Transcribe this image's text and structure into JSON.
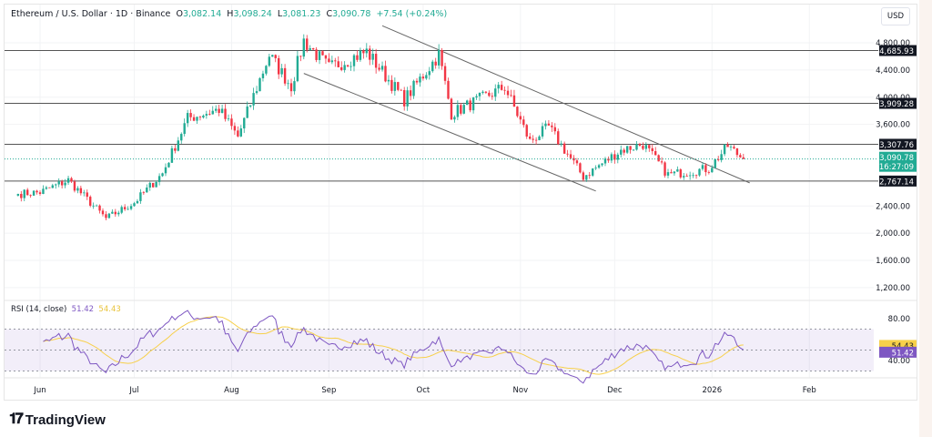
{
  "header": {
    "symbol": "Ethereum / U.S. Dollar · 1D · Binance",
    "open_label": "O",
    "open": "3,082.14",
    "high_label": "H",
    "high": "3,098.24",
    "low_label": "L",
    "low": "3,081.23",
    "close_label": "C",
    "close": "3,090.78",
    "change": "+7.54 (+0.24%)"
  },
  "currency": "USD",
  "colors": {
    "up": "#22ab94",
    "down": "#f23645",
    "rsi": "#7e57c2",
    "rsi_ma": "#f7d04a",
    "level": "#131722"
  },
  "price_axis": {
    "ticks": [
      4800,
      4400,
      4000,
      3600,
      2400,
      2000,
      1600,
      1200
    ],
    "tick_labels": [
      "4,800.00",
      "4,400.00",
      "4,000.00",
      "3,600.00",
      "2,400.00",
      "2,000.00",
      "1,600.00",
      "1,200.00"
    ]
  },
  "levels": [
    {
      "value": 4685.93,
      "label": "4,685.93"
    },
    {
      "value": 3909.28,
      "label": "3,909.28"
    },
    {
      "value": 3307.76,
      "label": "3,307.76"
    },
    {
      "value": 2767.14,
      "label": "2,767.14"
    }
  ],
  "current_price": {
    "value": 3090.78,
    "label": "3,090.78",
    "countdown": "16:27:09"
  },
  "time_axis": [
    {
      "date": "2025-06-01",
      "label": "Jun"
    },
    {
      "date": "2025-07-01",
      "label": "Jul"
    },
    {
      "date": "2025-08-01",
      "label": "Aug"
    },
    {
      "date": "2025-09-01",
      "label": "Sep"
    },
    {
      "date": "2025-10-01",
      "label": "Oct"
    },
    {
      "date": "2025-11-01",
      "label": "Nov"
    },
    {
      "date": "2025-12-01",
      "label": "Dec"
    },
    {
      "date": "2026-01-01",
      "label": "2026"
    },
    {
      "date": "2026-02-01",
      "label": "Feb"
    }
  ],
  "price_path": [
    [
      "2025-05-25",
      2578
    ],
    [
      "2025-06-01",
      2600
    ],
    [
      "2025-06-10",
      2780
    ],
    [
      "2025-06-22",
      2216
    ],
    [
      "2025-07-01",
      2450
    ],
    [
      "2025-07-10",
      2880
    ],
    [
      "2025-07-18",
      3690
    ],
    [
      "2025-07-28",
      3820
    ],
    [
      "2025-08-03",
      3420
    ],
    [
      "2025-08-13",
      4620
    ],
    [
      "2025-08-20",
      4160
    ],
    [
      "2025-08-24",
      4830
    ],
    [
      "2025-09-01",
      4430
    ],
    [
      "2025-09-13",
      4670
    ],
    [
      "2025-09-25",
      3960
    ],
    [
      "2025-10-06",
      4630
    ],
    [
      "2025-10-10",
      3760
    ],
    [
      "2025-10-27",
      4150
    ],
    [
      "2025-11-04",
      3350
    ],
    [
      "2025-11-10",
      3560
    ],
    [
      "2025-11-21",
      2830
    ],
    [
      "2025-12-03",
      3220
    ],
    [
      "2025-12-10",
      3310
    ],
    [
      "2025-12-18",
      2860
    ],
    [
      "2025-12-31",
      2950
    ],
    [
      "2026-01-06",
      3280
    ],
    [
      "2026-01-11",
      3090.78
    ]
  ],
  "channel": {
    "upper": [
      [
        "2025-09-18",
        5050
      ],
      [
        "2026-01-13",
        2740
      ]
    ],
    "lower": [
      [
        "2025-08-24",
        4350
      ],
      [
        "2025-11-25",
        2620
      ]
    ]
  },
  "rsi": {
    "label": "RSI (14, close)",
    "value": "51.42",
    "ma_value": "54.43",
    "ticks": [
      80,
      40
    ],
    "tick_labels": [
      "80.00",
      "40.00"
    ],
    "bands": [
      70,
      50,
      30
    ]
  },
  "footer": {
    "brand": "TradingView"
  }
}
